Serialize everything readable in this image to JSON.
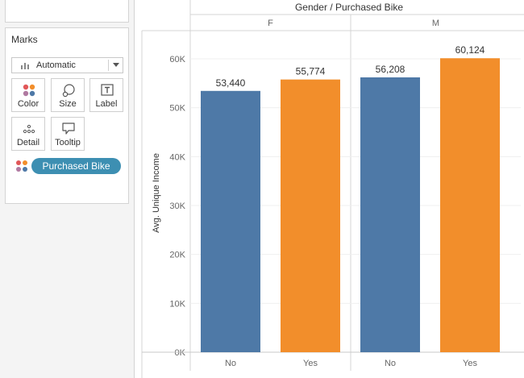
{
  "marks_card": {
    "title": "Marks",
    "mark_type": "Automatic",
    "buttons": [
      {
        "id": "color",
        "label": "Color",
        "icon": "color-dots-icon"
      },
      {
        "id": "size",
        "label": "Size",
        "icon": "size-icon"
      },
      {
        "id": "label",
        "label": "Label",
        "icon": "label-icon"
      },
      {
        "id": "detail",
        "label": "Detail",
        "icon": "detail-icon"
      },
      {
        "id": "tooltip",
        "label": "Tooltip",
        "icon": "tooltip-icon"
      }
    ],
    "color_pill": "Purchased Bike"
  },
  "colors": {
    "no": "#4e79a7",
    "yes": "#f28e2b",
    "pill": "#3d8fb2"
  },
  "chart_data": {
    "type": "bar",
    "column_header": "Gender / Purchased Bike",
    "panels": [
      {
        "name": "F",
        "categories": [
          "No",
          "Yes"
        ],
        "values": [
          53440,
          55774
        ],
        "value_labels": [
          "53,440",
          "55,774"
        ]
      },
      {
        "name": "M",
        "categories": [
          "No",
          "Yes"
        ],
        "values": [
          56208,
          60124
        ],
        "value_labels": [
          "56,208",
          "60,124"
        ]
      }
    ],
    "ylabel": "Avg. Unique Income",
    "ylim": [
      0,
      65000
    ],
    "yticks": [
      0,
      10000,
      20000,
      30000,
      40000,
      50000,
      60000
    ],
    "ytick_labels": [
      "0K",
      "10K",
      "20K",
      "30K",
      "40K",
      "50K",
      "60K"
    ],
    "grid": true,
    "legend": "none"
  }
}
